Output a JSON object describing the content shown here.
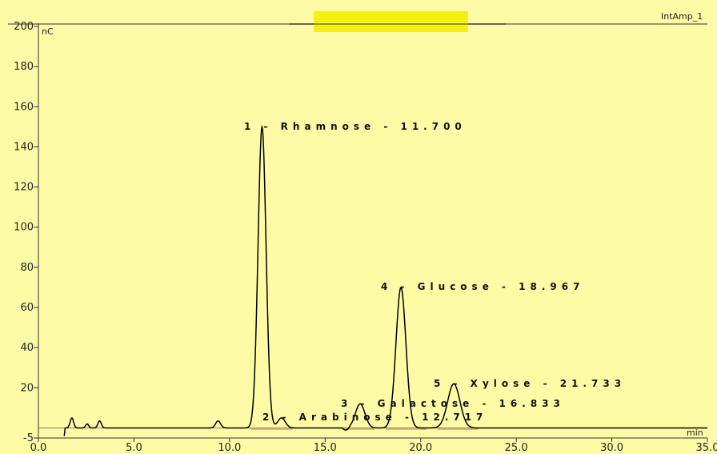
{
  "chart_data": {
    "type": "line",
    "title": "",
    "channel_label": "IntAmp_1",
    "xlabel": "min",
    "ylabel": "nC",
    "xlim": [
      0,
      35
    ],
    "ylim": [
      -5,
      200
    ],
    "x_ticks": [
      0,
      5,
      10,
      15,
      20,
      25,
      30,
      35
    ],
    "x_tick_labels": [
      "0.0",
      "5.0",
      "10.0",
      "15.0",
      "20.0",
      "25.0",
      "30.0",
      "35.0"
    ],
    "y_ticks": [
      -5,
      20,
      40,
      60,
      80,
      100,
      120,
      140,
      160,
      180,
      200
    ],
    "y_tick_labels": [
      "-5",
      "20",
      "40",
      "60",
      "80",
      "100",
      "120",
      "140",
      "160",
      "180",
      "200"
    ],
    "grid": false,
    "baseline": 0,
    "series": [
      {
        "color": "#000000",
        "peaks": [
          {
            "rt": 1.75,
            "height": 5,
            "width": 0.09
          },
          {
            "rt": 2.55,
            "height": 2,
            "width": 0.08
          },
          {
            "rt": 3.2,
            "height": 3.5,
            "width": 0.09
          },
          {
            "rt": 9.4,
            "height": 3.5,
            "width": 0.13
          },
          {
            "rt": 11.7,
            "height": 150,
            "width": 0.21
          },
          {
            "rt": 12.717,
            "height": 5,
            "width": 0.2
          },
          {
            "rt": 16.833,
            "height": 12,
            "width": 0.25
          },
          {
            "rt": 18.967,
            "height": 70,
            "width": 0.26
          },
          {
            "rt": 21.733,
            "height": 22,
            "width": 0.32
          }
        ]
      }
    ],
    "annotations": [
      {
        "text": "1 - Rhamnose - 11.700",
        "x": 11.7,
        "y": 150
      },
      {
        "text": "2 - Arabinose - 12.717",
        "x": 12.717,
        "y": 5
      },
      {
        "text": "3 - Galactose - 16.833",
        "x": 16.833,
        "y": 12
      },
      {
        "text": "4 - Glucose - 18.967",
        "x": 18.967,
        "y": 70
      },
      {
        "text": "5 - Xylose - 21.733",
        "x": 21.733,
        "y": 22
      }
    ],
    "colors": {
      "background": "#fdfba6",
      "trace": "#000000",
      "integration_baseline": "#f08a5d",
      "header_highlight": "#f5ef12"
    }
  }
}
